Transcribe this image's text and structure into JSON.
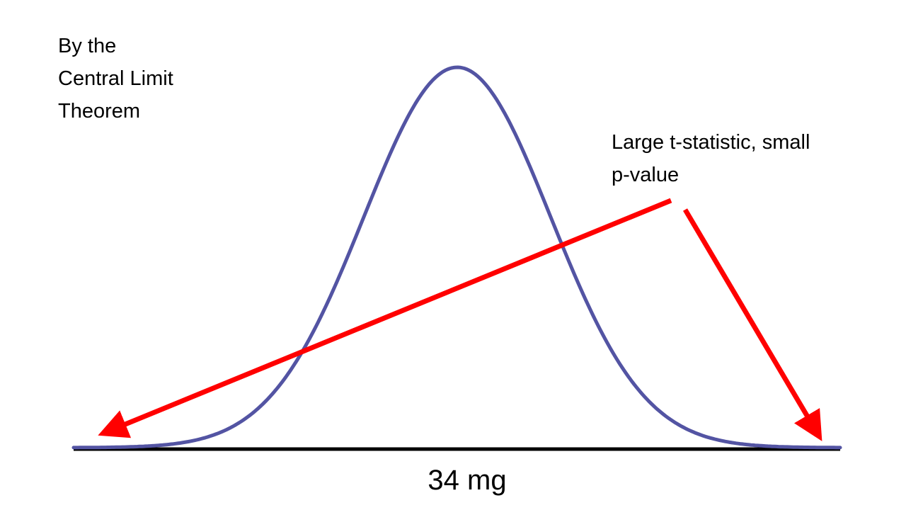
{
  "clt_label": {
    "line1": "By the",
    "line2": "Central Limit",
    "line3": "Theorem"
  },
  "annotation": {
    "line1": "Large t-statistic, small",
    "line2": "p-value"
  },
  "axis_value_label": "34 mg",
  "colors": {
    "curve": "#5354a3",
    "arrow": "#ff0000",
    "axis": "#000000",
    "background": "#ffffff"
  }
}
